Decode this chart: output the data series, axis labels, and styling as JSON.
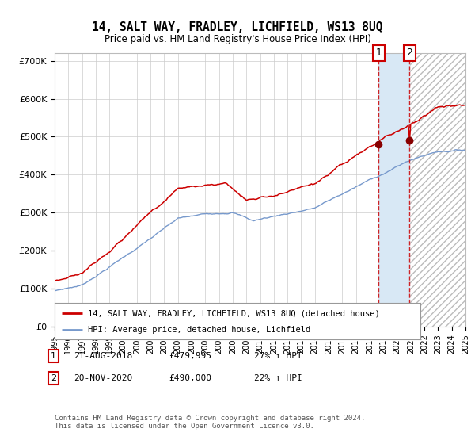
{
  "title": "14, SALT WAY, FRADLEY, LICHFIELD, WS13 8UQ",
  "subtitle": "Price paid vs. HM Land Registry's House Price Index (HPI)",
  "legend_label_red": "14, SALT WAY, FRADLEY, LICHFIELD, WS13 8UQ (detached house)",
  "legend_label_blue": "HPI: Average price, detached house, Lichfield",
  "annotation1_date": "21-AUG-2018",
  "annotation1_price": "£479,995",
  "annotation1_hpi": "27% ↑ HPI",
  "annotation2_date": "20-NOV-2020",
  "annotation2_price": "£490,000",
  "annotation2_hpi": "22% ↑ HPI",
  "footer": "Contains HM Land Registry data © Crown copyright and database right 2024.\nThis data is licensed under the Open Government Licence v3.0.",
  "red_color": "#cc0000",
  "blue_color": "#7799cc",
  "shaded_color": "#d8e8f5",
  "annotation_line_color": "#cc0000",
  "ylim": [
    0,
    720000
  ],
  "yticks": [
    0,
    100000,
    200000,
    300000,
    400000,
    500000,
    600000,
    700000
  ],
  "ytick_labels": [
    "£0",
    "£100K",
    "£200K",
    "£300K",
    "£400K",
    "£500K",
    "£600K",
    "£700K"
  ]
}
